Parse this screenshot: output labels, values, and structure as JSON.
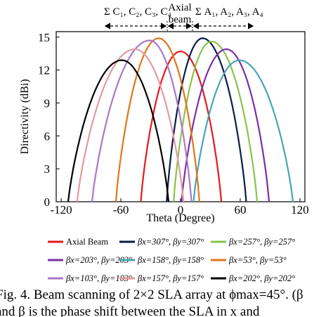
{
  "chart_data": {
    "type": "line",
    "xlabel": "Theta (Degree)",
    "ylabel": "Directivity (dBi)",
    "xlim": [
      -125,
      125
    ],
    "ylim": [
      0,
      15.5
    ],
    "xticks": [
      "-120",
      "-60",
      "0",
      "60",
      "120"
    ],
    "yticks": [
      "0",
      "3",
      "6",
      "9",
      "12",
      "15"
    ],
    "grid": false,
    "legend_position": "below",
    "annotations": {
      "left_group": "Σ C₁, C₂, C₃, C₄",
      "center_group_line1": "Axial",
      "center_group_line2": "beam",
      "right_group": "Σ A₁, A₂, A₃, A₄"
    },
    "series": [
      {
        "name": "Axial Beam",
        "color": "#e41a1c",
        "peak_theta": 0,
        "peak_dbi": 13.7,
        "zero_theta": [
          -40,
          41
        ]
      },
      {
        "name": "βx=307°, βy=307°",
        "color": "#0b1a4a",
        "peak_theta": 22,
        "peak_dbi": 14.9,
        "zero_theta": [
          -14,
          66
        ]
      },
      {
        "name": "βx=257°, βy=257°",
        "color": "#8bc34a",
        "peak_theta": 31,
        "peak_dbi": 14.6,
        "zero_theta": [
          -7,
          77
        ]
      },
      {
        "name": "βx=203°, βy=203°",
        "color": "#7b2fa6",
        "peak_theta": 46,
        "peak_dbi": 13.9,
        "zero_theta": [
          1,
          89
        ]
      },
      {
        "name": "βx=158°, βy=158°",
        "color": "#4aa3b8",
        "peak_theta": 59,
        "peak_dbi": 12.9,
        "zero_theta": [
          13,
          113
        ]
      },
      {
        "name": "βx=53°, βy=53°",
        "color": "#e0761a",
        "peak_theta": -22,
        "peak_dbi": 14.9,
        "zero_theta": [
          -65,
          19
        ]
      },
      {
        "name": "βx=103°, βy=103°",
        "color": "#a879c9",
        "peak_theta": -31,
        "peak_dbi": 14.7,
        "zero_theta": [
          -89,
          11
        ]
      },
      {
        "name": "βx=157°, βy=157°",
        "color": "#e49a9e",
        "peak_theta": -46,
        "peak_dbi": 13.9,
        "zero_theta": [
          -104,
          3
        ]
      },
      {
        "name": "βx=202°, βy=202°",
        "color": "#000000",
        "peak_theta": -59,
        "peak_dbi": 12.9,
        "zero_theta": [
          -113,
          -12
        ]
      }
    ]
  },
  "caption": {
    "line1": "Fig. 4. Beam scanning of 2×2 SLA array at ϕmax=45°. (β",
    "line2": "and β  is the phase shift between the SLA in x and"
  }
}
